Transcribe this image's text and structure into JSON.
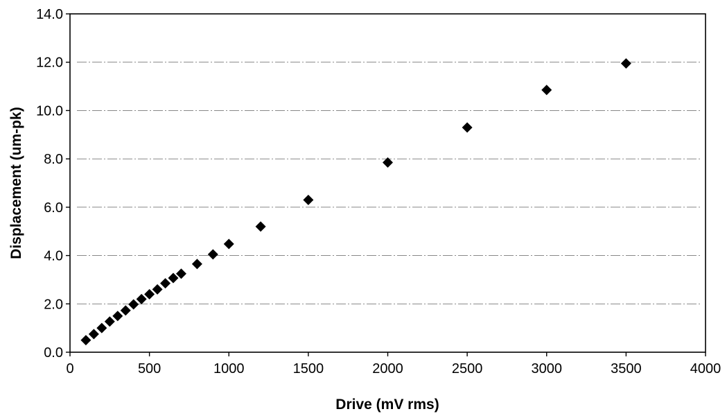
{
  "chart_data": {
    "type": "scatter",
    "xlabel": "Drive (mV rms)",
    "ylabel": "Displacement (um-pk)",
    "xlim": [
      0,
      4000
    ],
    "ylim": [
      0,
      14
    ],
    "x_ticks": [
      "0",
      "500",
      "1000",
      "1500",
      "2000",
      "2500",
      "3000",
      "3500",
      "4000"
    ],
    "y_ticks": [
      "0.0",
      "2.0",
      "4.0",
      "6.0",
      "8.0",
      "10.0",
      "12.0",
      "14.0"
    ],
    "grid": "horizontal",
    "legend": "none",
    "marker": "diamond",
    "marker_color": "#000000",
    "series": [
      {
        "points": [
          {
            "x": 100,
            "y": 0.5
          },
          {
            "x": 150,
            "y": 0.75
          },
          {
            "x": 200,
            "y": 1.0
          },
          {
            "x": 250,
            "y": 1.27
          },
          {
            "x": 300,
            "y": 1.5
          },
          {
            "x": 350,
            "y": 1.73
          },
          {
            "x": 400,
            "y": 1.98
          },
          {
            "x": 450,
            "y": 2.2
          },
          {
            "x": 500,
            "y": 2.4
          },
          {
            "x": 550,
            "y": 2.6
          },
          {
            "x": 600,
            "y": 2.85
          },
          {
            "x": 650,
            "y": 3.07
          },
          {
            "x": 700,
            "y": 3.25
          },
          {
            "x": 800,
            "y": 3.65
          },
          {
            "x": 900,
            "y": 4.05
          },
          {
            "x": 1000,
            "y": 4.48
          },
          {
            "x": 1200,
            "y": 5.2
          },
          {
            "x": 1500,
            "y": 6.3
          },
          {
            "x": 2000,
            "y": 7.85
          },
          {
            "x": 2500,
            "y": 9.3
          },
          {
            "x": 3000,
            "y": 10.85
          },
          {
            "x": 3500,
            "y": 11.95
          }
        ]
      }
    ]
  }
}
